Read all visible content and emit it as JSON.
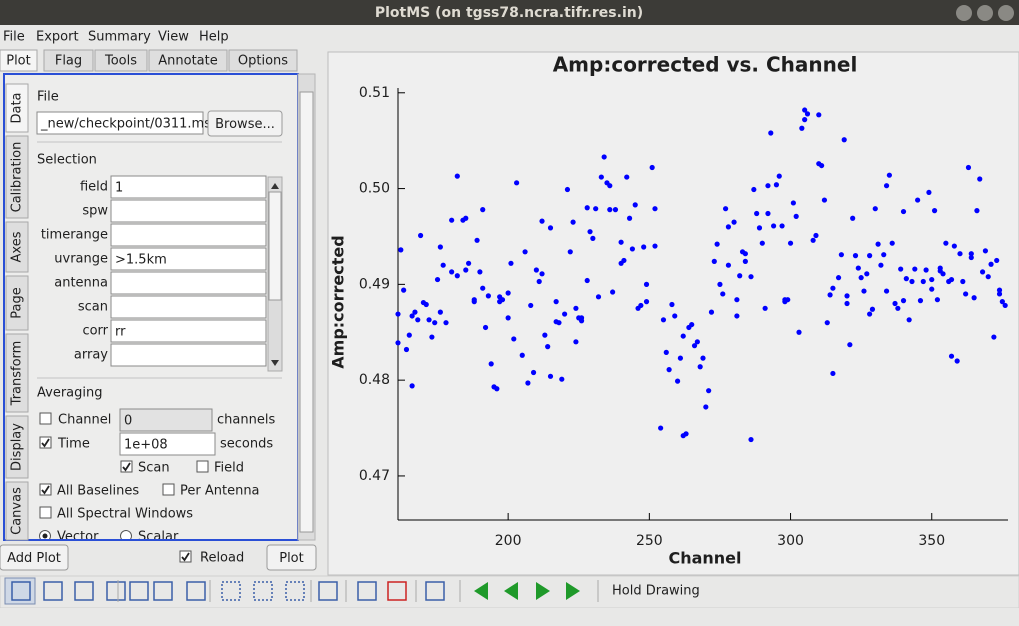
{
  "window": {
    "title": "PlotMS (on tgss78.ncra.tifr.res.in)"
  },
  "menu": [
    "File",
    "Export",
    "Summary",
    "View",
    "Help"
  ],
  "tabs": [
    "Plot",
    "Flag",
    "Tools",
    "Annotate",
    "Options"
  ],
  "side_tabs": [
    "Data",
    "Calibration",
    "Axes",
    "Page",
    "Transform",
    "Display",
    "Canvas"
  ],
  "file_panel": {
    "heading": "File",
    "path": "_new/checkpoint/0311.ms",
    "button": "Browse..."
  },
  "selection": {
    "heading": "Selection",
    "fields": [
      {
        "label": "field",
        "value": "1"
      },
      {
        "label": "spw"
      },
      {
        "label": "timerange"
      },
      {
        "label": "uvrange",
        "value": ">1.5km"
      },
      {
        "label": "antenna"
      },
      {
        "label": "scan"
      },
      {
        "label": "corr",
        "value": "rr"
      },
      {
        "label": "array"
      }
    ]
  },
  "averaging": {
    "heading": "Averaging",
    "channel": {
      "label": "Channel",
      "checked": false,
      "value": "0",
      "unit": "channels"
    },
    "time": {
      "label": "Time",
      "checked": true,
      "value": "1e+08",
      "unit": "seconds"
    },
    "checkboxes": [
      {
        "label": "Scan",
        "checked": true
      },
      {
        "label": "Field",
        "checked": false
      },
      {
        "label": "All Baselines",
        "checked": true
      },
      {
        "label": "Per Antenna",
        "checked": false
      },
      {
        "label": "All Spectral Windows",
        "checked": false
      }
    ],
    "radios": [
      {
        "label": "Vector",
        "checked": true
      },
      {
        "label": "Scalar",
        "checked": false
      }
    ]
  },
  "bottom": {
    "add_plot": "Add Plot",
    "reload": {
      "label": "Reload",
      "checked": true
    },
    "plot": "Plot"
  },
  "toolbar": {
    "hold_drawing": "Hold Drawing"
  },
  "chart_data": {
    "type": "scatter",
    "title": "Amp:corrected vs. Channel",
    "x_label": "Channel",
    "y_label": "Amp:corrected",
    "color": "#0000ff",
    "xlim": [
      161,
      377
    ],
    "ylim": [
      0.4654,
      0.5105
    ],
    "xticks": [
      200,
      250,
      300,
      350
    ],
    "yticks": [
      0.47,
      0.48,
      0.49,
      {
        "value": 0.5,
        "label": "0.50"
      },
      0.51
    ],
    "x": [
      161,
      161,
      162,
      163,
      164,
      165,
      166,
      166,
      167,
      168,
      169,
      170,
      171,
      172,
      173,
      174,
      175,
      176,
      176,
      177,
      178,
      180,
      180,
      182,
      182,
      184,
      185,
      185,
      186,
      188,
      188,
      189,
      190,
      191,
      191,
      192,
      193,
      194,
      195,
      196,
      197,
      197,
      198,
      200,
      200,
      201,
      202,
      203,
      205,
      206,
      207,
      208,
      209,
      210,
      211,
      212,
      212,
      213,
      214,
      215,
      215,
      217,
      217,
      218,
      219,
      220,
      221,
      222,
      223,
      224,
      224,
      225,
      226,
      226,
      228,
      228,
      229,
      230,
      231,
      232,
      233,
      234,
      235,
      236,
      236,
      237,
      238,
      240,
      240,
      241,
      242,
      243,
      244,
      245,
      246,
      247,
      248,
      249,
      249,
      251,
      252,
      252,
      254,
      255,
      256,
      257,
      258,
      259,
      260,
      261,
      262,
      262,
      263,
      264,
      265,
      266,
      267,
      268,
      269,
      270,
      271,
      272,
      273,
      274,
      275,
      276,
      277,
      278,
      278,
      280,
      281,
      281,
      282,
      283,
      284,
      284,
      286,
      286,
      287,
      288,
      289,
      290,
      291,
      292,
      292,
      293,
      294,
      295,
      296,
      297,
      298,
      298,
      299,
      300,
      301,
      302,
      303,
      304,
      305,
      305,
      306,
      308,
      309,
      310,
      310,
      311,
      312,
      313,
      314,
      315,
      315,
      317,
      318,
      319,
      320,
      320,
      321,
      322,
      323,
      324,
      325,
      326,
      327,
      328,
      328,
      329,
      330,
      331,
      332,
      333,
      334,
      334,
      335,
      336,
      337,
      338,
      339,
      340,
      340,
      341,
      342,
      343,
      344,
      345,
      346,
      347,
      348,
      349,
      350,
      350,
      351,
      352,
      353,
      353,
      354,
      355,
      356,
      357,
      357,
      358,
      359,
      360,
      361,
      362,
      363,
      364,
      364,
      365,
      366,
      367,
      368,
      369,
      370,
      371,
      372,
      373,
      374,
      374,
      375,
      376
    ],
    "values": [
      0.4869,
      0.4839,
      0.4936,
      0.4894,
      0.4832,
      0.4847,
      0.4867,
      0.4794,
      0.4871,
      0.4863,
      0.4951,
      0.4881,
      0.4879,
      0.4863,
      0.4845,
      0.486,
      0.4905,
      0.4871,
      0.4939,
      0.492,
      0.486,
      0.4967,
      0.4913,
      0.5013,
      0.4909,
      0.4967,
      0.4969,
      0.4915,
      0.4922,
      0.4884,
      0.4882,
      0.4946,
      0.4913,
      0.4896,
      0.4978,
      0.4855,
      0.4888,
      0.4817,
      0.4793,
      0.4791,
      0.4882,
      0.4887,
      0.4884,
      0.4865,
      0.4891,
      0.4922,
      0.4843,
      0.5006,
      0.4826,
      0.4934,
      0.4797,
      0.4878,
      0.4808,
      0.4915,
      0.4903,
      0.4911,
      0.4966,
      0.4847,
      0.4835,
      0.4804,
      0.4959,
      0.4861,
      0.4882,
      0.486,
      0.4801,
      0.4869,
      0.4999,
      0.4934,
      0.4965,
      0.484,
      0.4875,
      0.4865,
      0.4862,
      0.4865,
      0.4904,
      0.498,
      0.4955,
      0.4948,
      0.4979,
      0.4887,
      0.5012,
      0.5033,
      0.5006,
      0.4978,
      0.5003,
      0.4892,
      0.4978,
      0.4944,
      0.4922,
      0.4925,
      0.5012,
      0.4969,
      0.4937,
      0.4983,
      0.4875,
      0.4878,
      0.4939,
      0.49,
      0.4882,
      0.5022,
      0.4979,
      0.494,
      0.475,
      0.4863,
      0.4829,
      0.4811,
      0.4879,
      0.4867,
      0.4799,
      0.4823,
      0.4846,
      0.4742,
      0.4744,
      0.4855,
      0.4858,
      0.4836,
      0.484,
      0.4814,
      0.4823,
      0.4772,
      0.4789,
      0.4871,
      0.4924,
      0.4942,
      0.49,
      0.489,
      0.4979,
      0.496,
      0.492,
      0.4965,
      0.4884,
      0.4867,
      0.4909,
      0.4934,
      0.4932,
      0.4924,
      0.4908,
      0.4738,
      0.4999,
      0.4974,
      0.4959,
      0.4943,
      0.4875,
      0.5003,
      0.4974,
      0.5058,
      0.4961,
      0.5004,
      0.5013,
      0.4961,
      0.4882,
      0.4884,
      0.4884,
      0.4943,
      0.4985,
      0.4971,
      0.485,
      0.5063,
      0.5082,
      0.5072,
      0.5078,
      0.4946,
      0.4951,
      0.5026,
      0.5077,
      0.5024,
      0.4988,
      0.486,
      0.4889,
      0.4896,
      0.4807,
      0.4907,
      0.4931,
      0.5051,
      0.4888,
      0.488,
      0.4837,
      0.4969,
      0.493,
      0.4917,
      0.4907,
      0.4893,
      0.4911,
      0.493,
      0.4869,
      0.4874,
      0.4979,
      0.4942,
      0.492,
      0.4931,
      0.4893,
      0.5003,
      0.5014,
      0.4943,
      0.488,
      0.4875,
      0.4916,
      0.4976,
      0.4883,
      0.4906,
      0.4863,
      0.4903,
      0.4916,
      0.4988,
      0.4883,
      0.4903,
      0.4915,
      0.4996,
      0.4905,
      0.4895,
      0.4977,
      0.4884,
      0.4914,
      0.4917,
      0.4911,
      0.4943,
      0.4903,
      0.4825,
      0.4905,
      0.494,
      0.482,
      0.4932,
      0.4903,
      0.489,
      0.5022,
      0.4932,
      0.4928,
      0.4886,
      0.4977,
      0.501,
      0.4913,
      0.4935,
      0.4908,
      0.4921,
      0.4845,
      0.4925,
      0.4894,
      0.489,
      0.4882,
      0.4878
    ]
  }
}
